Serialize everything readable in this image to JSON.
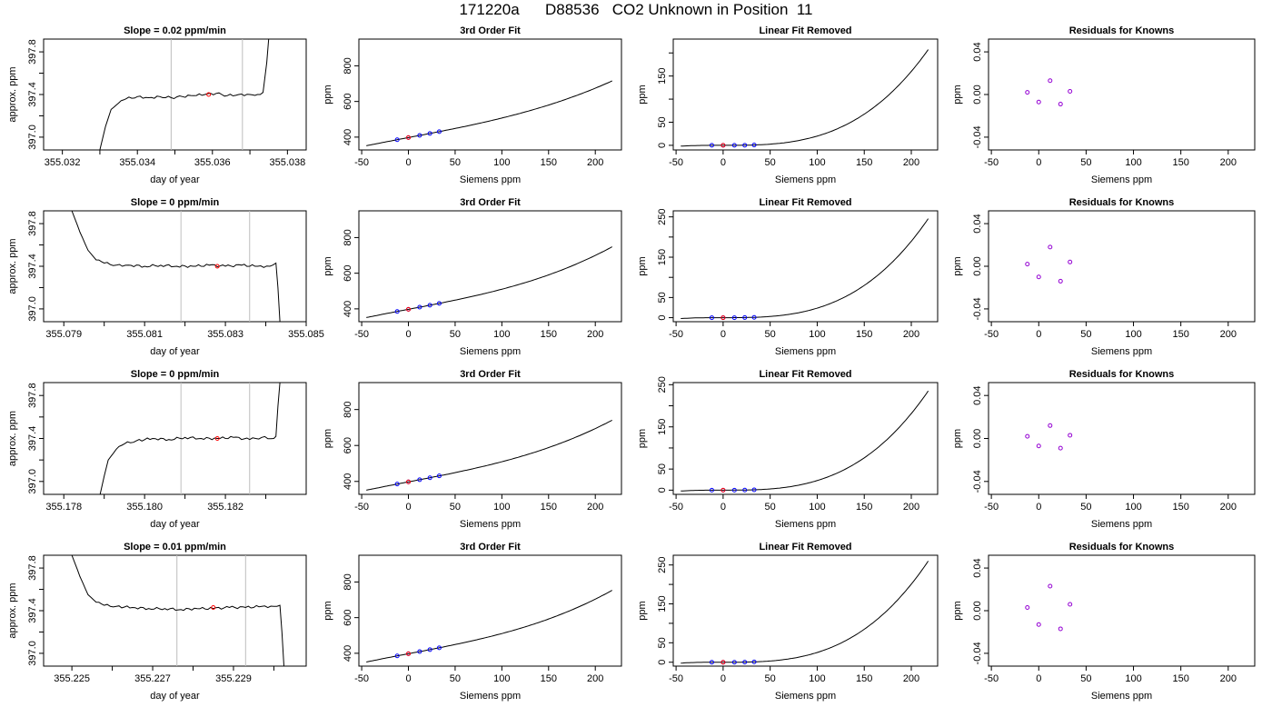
{
  "figure_title": "171220a      D88536   CO2 Unknown in Position  11",
  "colors": {
    "curve": "#000000",
    "marker_known": "#0000ff",
    "marker_unknown": "#ff0000",
    "residual_marker": "#9400d3",
    "window_line": "#bebebe"
  },
  "chart_data": [
    {
      "row": 1,
      "panel": "trace",
      "type": "line",
      "title": "Slope =  0.02  ppm/min",
      "xlabel": "day of year",
      "ylabel": "approx. ppm",
      "xlim": [
        355.0315,
        355.0385
      ],
      "ylim": [
        396.88,
        397.92
      ],
      "xticks": [
        "355.032",
        "355.034",
        "355.036",
        "355.038"
      ],
      "xticks_minor": [
        355.033,
        355.035,
        355.037
      ],
      "yticks": [
        "397.0",
        "397.4",
        "397.8"
      ],
      "yticks_minor": [
        397.2,
        397.6
      ],
      "vlines": [
        355.0349,
        355.0368
      ],
      "x": [
        355.033,
        355.03315,
        355.0333,
        355.0335,
        355.0337,
        355.034,
        355.0343,
        355.0346,
        355.0349,
        355.0352,
        355.0355,
        355.0358,
        355.0361,
        355.0364,
        355.0367,
        355.037,
        355.0372,
        355.03735,
        355.03745,
        355.0375
      ],
      "y": [
        396.88,
        397.1,
        397.26,
        397.32,
        397.36,
        397.38,
        397.37,
        397.38,
        397.37,
        397.38,
        397.39,
        397.4,
        397.41,
        397.39,
        397.4,
        397.4,
        397.4,
        397.42,
        397.7,
        397.92
      ],
      "marker": {
        "x": 355.0359,
        "y": 397.4
      }
    },
    {
      "row": 1,
      "panel": "fit",
      "type": "line",
      "title": "3rd Order Fit",
      "xlabel": "Siemens ppm",
      "ylabel": "ppm",
      "xlim": [
        -53,
        228
      ],
      "ylim": [
        328,
        950
      ],
      "xticks": [
        "-50",
        "0",
        "50",
        "100",
        "150",
        "200"
      ],
      "yticks": [
        "400",
        "600",
        "800"
      ],
      "curve": {
        "x_from": -45,
        "x_to": 218,
        "slope": 1.0,
        "k": 9.64e-06,
        "y0": 397.4
      },
      "points": [
        {
          "x": -12,
          "y": 385.4
        },
        {
          "x": 0,
          "y": 397.4
        },
        {
          "x": 12,
          "y": 409.4
        },
        {
          "x": 23,
          "y": 420.5
        },
        {
          "x": 33,
          "y": 430.7
        }
      ],
      "unknown": {
        "x": 0,
        "y": 397.4
      }
    },
    {
      "row": 1,
      "panel": "linear_removed",
      "type": "line",
      "title": "Linear Fit Removed",
      "xlabel": "Siemens ppm",
      "ylabel": "ppm",
      "xlim": [
        -53,
        228
      ],
      "ylim": [
        -10,
        230
      ],
      "xticks": [
        "-50",
        "0",
        "50",
        "100",
        "150",
        "200"
      ],
      "yticks": [
        "0",
        "50",
        "150"
      ],
      "yticks_minor": [
        100,
        200
      ],
      "curve": {
        "x_from": -45,
        "x_to": 218,
        "k": 2e-05
      },
      "points": [
        {
          "x": -12,
          "y": 0
        },
        {
          "x": 0,
          "y": 0
        },
        {
          "x": 12,
          "y": 0
        },
        {
          "x": 23,
          "y": 0.2
        },
        {
          "x": 33,
          "y": 0.7
        }
      ],
      "unknown": {
        "x": 0,
        "y": 0
      }
    },
    {
      "row": 1,
      "panel": "residuals",
      "type": "scatter",
      "title": "Residuals for Knowns",
      "xlabel": "Siemens ppm",
      "ylabel": "ppm",
      "xlim": [
        -53,
        228
      ],
      "ylim": [
        -0.052,
        0.052
      ],
      "xticks": [
        "-50",
        "0",
        "50",
        "100",
        "150",
        "200"
      ],
      "yticks": [
        "-0.04",
        "0.00",
        "0.04"
      ],
      "points": [
        {
          "x": -12,
          "y": 0.002
        },
        {
          "x": 0,
          "y": -0.007
        },
        {
          "x": 12,
          "y": 0.013
        },
        {
          "x": 23,
          "y": -0.009
        },
        {
          "x": 33,
          "y": 0.003
        }
      ]
    },
    {
      "row": 2,
      "panel": "trace",
      "type": "line",
      "title": "Slope =  0  ppm/min",
      "xlabel": "day of year",
      "ylabel": "approx. ppm",
      "xlim": [
        355.0785,
        355.085
      ],
      "ylim": [
        396.88,
        397.92
      ],
      "xticks": [
        "355.079",
        "355.081",
        "355.083",
        "355.085"
      ],
      "xticks_minor": [
        355.08,
        355.082,
        355.084
      ],
      "yticks": [
        "397.0",
        "397.4",
        "397.8"
      ],
      "yticks_minor": [
        397.2,
        397.6
      ],
      "vlines": [
        355.0819,
        355.0836
      ],
      "x": [
        355.0792,
        355.0794,
        355.0796,
        355.0798,
        355.08,
        355.0803,
        355.0806,
        355.081,
        355.0814,
        355.0818,
        355.0822,
        355.0826,
        355.083,
        355.0834,
        355.0838,
        355.0841,
        355.08425,
        355.0843,
        355.08435
      ],
      "y": [
        397.92,
        397.72,
        397.55,
        397.46,
        397.43,
        397.41,
        397.41,
        397.4,
        397.41,
        397.4,
        397.4,
        397.41,
        397.4,
        397.41,
        397.4,
        397.4,
        397.43,
        397.2,
        396.88
      ],
      "marker": {
        "x": 355.0828,
        "y": 397.4
      }
    },
    {
      "row": 2,
      "panel": "fit",
      "type": "line",
      "title": "3rd Order Fit",
      "xlabel": "Siemens ppm",
      "ylabel": "ppm",
      "xlim": [
        -53,
        228
      ],
      "ylim": [
        328,
        950
      ],
      "xticks": [
        "-50",
        "0",
        "50",
        "100",
        "150",
        "200"
      ],
      "yticks": [
        "400",
        "600",
        "800"
      ],
      "curve": {
        "x_from": -45,
        "x_to": 218,
        "slope": 1.0,
        "k": 1.28e-05,
        "y0": 397.4
      },
      "points": [
        {
          "x": -12,
          "y": 385.4
        },
        {
          "x": 0,
          "y": 397.4
        },
        {
          "x": 12,
          "y": 409.4
        },
        {
          "x": 23,
          "y": 420.5
        },
        {
          "x": 33,
          "y": 430.8
        }
      ],
      "unknown": {
        "x": 0,
        "y": 397.4
      }
    },
    {
      "row": 2,
      "panel": "linear_removed",
      "type": "line",
      "title": "Linear Fit Removed",
      "xlabel": "Siemens ppm",
      "ylabel": "ppm",
      "xlim": [
        -53,
        228
      ],
      "ylim": [
        -10,
        265
      ],
      "xticks": [
        "-50",
        "0",
        "50",
        "100",
        "150",
        "200"
      ],
      "yticks": [
        "0",
        "50",
        "150",
        "250"
      ],
      "yticks_minor": [
        100,
        200
      ],
      "curve": {
        "x_from": -45,
        "x_to": 218,
        "k": 2.37e-05
      },
      "points": [
        {
          "x": -12,
          "y": 0
        },
        {
          "x": 0,
          "y": 0
        },
        {
          "x": 12,
          "y": 0
        },
        {
          "x": 23,
          "y": 0.3
        },
        {
          "x": 33,
          "y": 0.8
        }
      ],
      "unknown": {
        "x": 0,
        "y": 0
      }
    },
    {
      "row": 2,
      "panel": "residuals",
      "type": "scatter",
      "title": "Residuals for Knowns",
      "xlabel": "Siemens ppm",
      "ylabel": "ppm",
      "xlim": [
        -53,
        228
      ],
      "ylim": [
        -0.052,
        0.052
      ],
      "xticks": [
        "-50",
        "0",
        "50",
        "100",
        "150",
        "200"
      ],
      "yticks": [
        "-0.04",
        "0.00",
        "0.04"
      ],
      "points": [
        {
          "x": -12,
          "y": 0.002
        },
        {
          "x": 0,
          "y": -0.01
        },
        {
          "x": 12,
          "y": 0.018
        },
        {
          "x": 23,
          "y": -0.014
        },
        {
          "x": 33,
          "y": 0.004
        }
      ]
    },
    {
      "row": 3,
      "panel": "trace",
      "type": "line",
      "title": "Slope =  0  ppm/min",
      "xlabel": "day of year",
      "ylabel": "approx. ppm",
      "xlim": [
        355.1775,
        355.184
      ],
      "ylim": [
        396.88,
        397.92
      ],
      "xticks": [
        "355.178",
        "355.180",
        "355.182"
      ],
      "xticks_minor": [
        355.179,
        355.181,
        355.183
      ],
      "yticks": [
        "397.0",
        "397.4",
        "397.8"
      ],
      "yticks_minor": [
        397.2,
        397.6
      ],
      "vlines": [
        355.1809,
        355.1826
      ],
      "x": [
        355.1789,
        355.179,
        355.1791,
        355.1793,
        355.1795,
        355.1798,
        355.1802,
        355.1806,
        355.181,
        355.1814,
        355.1818,
        355.1822,
        355.1826,
        355.1829,
        355.1832,
        355.18325,
        355.1833,
        355.18335
      ],
      "y": [
        396.88,
        397.05,
        397.2,
        397.3,
        397.35,
        397.38,
        397.4,
        397.39,
        397.41,
        397.4,
        397.4,
        397.41,
        397.39,
        397.41,
        397.4,
        397.42,
        397.7,
        397.92
      ],
      "marker": {
        "x": 355.1818,
        "y": 397.4
      }
    },
    {
      "row": 3,
      "panel": "fit",
      "type": "line",
      "title": "3rd Order Fit",
      "xlabel": "Siemens ppm",
      "ylabel": "ppm",
      "xlim": [
        -53,
        228
      ],
      "ylim": [
        328,
        950
      ],
      "xticks": [
        "-50",
        "0",
        "50",
        "100",
        "150",
        "200"
      ],
      "yticks": [
        "400",
        "600",
        "800"
      ],
      "curve": {
        "x_from": -45,
        "x_to": 218,
        "slope": 1.0,
        "k": 1.21e-05,
        "y0": 397.4
      },
      "points": [
        {
          "x": -12,
          "y": 385.4
        },
        {
          "x": 0,
          "y": 397.4
        },
        {
          "x": 12,
          "y": 409.4
        },
        {
          "x": 23,
          "y": 420.5
        },
        {
          "x": 33,
          "y": 430.8
        }
      ],
      "unknown": {
        "x": 0,
        "y": 397.4
      }
    },
    {
      "row": 3,
      "panel": "linear_removed",
      "type": "line",
      "title": "Linear Fit Removed",
      "xlabel": "Siemens ppm",
      "ylabel": "ppm",
      "xlim": [
        -53,
        228
      ],
      "ylim": [
        -10,
        255
      ],
      "xticks": [
        "-50",
        "0",
        "50",
        "100",
        "150",
        "200"
      ],
      "yticks": [
        "0",
        "50",
        "150",
        "250"
      ],
      "yticks_minor": [
        100,
        200
      ],
      "curve": {
        "x_from": -45,
        "x_to": 218,
        "k": 2.27e-05
      },
      "points": [
        {
          "x": -12,
          "y": 0
        },
        {
          "x": 0,
          "y": 0
        },
        {
          "x": 12,
          "y": 0
        },
        {
          "x": 23,
          "y": 0.3
        },
        {
          "x": 33,
          "y": 0.8
        }
      ],
      "unknown": {
        "x": 0,
        "y": 0
      }
    },
    {
      "row": 3,
      "panel": "residuals",
      "type": "scatter",
      "title": "Residuals for Knowns",
      "xlabel": "Siemens ppm",
      "ylabel": "ppm",
      "xlim": [
        -53,
        228
      ],
      "ylim": [
        -0.052,
        0.052
      ],
      "xticks": [
        "-50",
        "0",
        "50",
        "100",
        "150",
        "200"
      ],
      "yticks": [
        "-0.04",
        "0.00",
        "0.04"
      ],
      "points": [
        {
          "x": -12,
          "y": 0.002
        },
        {
          "x": 0,
          "y": -0.007
        },
        {
          "x": 12,
          "y": 0.012
        },
        {
          "x": 23,
          "y": -0.009
        },
        {
          "x": 33,
          "y": 0.003
        }
      ]
    },
    {
      "row": 4,
      "panel": "trace",
      "type": "line",
      "title": "Slope =  0.01  ppm/min",
      "xlabel": "day of year",
      "ylabel": "approx. ppm",
      "xlim": [
        355.2243,
        355.2308
      ],
      "ylim": [
        396.88,
        397.92
      ],
      "xticks": [
        "355.225",
        "355.227",
        "355.229"
      ],
      "xticks_minor": [
        355.226,
        355.228,
        355.23
      ],
      "yticks": [
        "397.0",
        "397.4",
        "397.8"
      ],
      "yticks_minor": [
        397.2,
        397.6
      ],
      "vlines": [
        355.2276,
        355.2293
      ],
      "x": [
        355.225,
        355.2252,
        355.2254,
        355.2256,
        355.2258,
        355.2261,
        355.2265,
        355.2269,
        355.2273,
        355.2277,
        355.2281,
        355.2285,
        355.2289,
        355.2293,
        355.2297,
        355.23,
        355.23015,
        355.2302,
        355.23025
      ],
      "y": [
        397.92,
        397.72,
        397.55,
        397.48,
        397.45,
        397.44,
        397.43,
        397.42,
        397.42,
        397.41,
        397.42,
        397.42,
        397.43,
        397.43,
        397.44,
        397.44,
        397.45,
        397.2,
        396.88
      ],
      "marker": {
        "x": 355.2285,
        "y": 397.43
      }
    },
    {
      "row": 4,
      "panel": "fit",
      "type": "line",
      "title": "3rd Order Fit",
      "xlabel": "Siemens ppm",
      "ylabel": "ppm",
      "xlim": [
        -53,
        228
      ],
      "ylim": [
        328,
        950
      ],
      "xticks": [
        "-50",
        "0",
        "50",
        "100",
        "150",
        "200"
      ],
      "yticks": [
        "400",
        "600",
        "800"
      ],
      "curve": {
        "x_from": -45,
        "x_to": 218,
        "slope": 1.0,
        "k": 1.33e-05,
        "y0": 397.4
      },
      "points": [
        {
          "x": -12,
          "y": 385.4
        },
        {
          "x": 0,
          "y": 397.4
        },
        {
          "x": 12,
          "y": 409.4
        },
        {
          "x": 23,
          "y": 420.5
        },
        {
          "x": 33,
          "y": 430.8
        }
      ],
      "unknown": {
        "x": 0,
        "y": 397.4
      }
    },
    {
      "row": 4,
      "panel": "linear_removed",
      "type": "line",
      "title": "Linear Fit Removed",
      "xlabel": "Siemens ppm",
      "ylabel": "ppm",
      "xlim": [
        -53,
        228
      ],
      "ylim": [
        -10,
        275
      ],
      "xticks": [
        "-50",
        "0",
        "50",
        "100",
        "150",
        "200"
      ],
      "yticks": [
        "0",
        "50",
        "150",
        "250"
      ],
      "yticks_minor": [
        100,
        200
      ],
      "curve": {
        "x_from": -45,
        "x_to": 218,
        "k": 2.51e-05
      },
      "points": [
        {
          "x": -12,
          "y": 0
        },
        {
          "x": 0,
          "y": 0
        },
        {
          "x": 12,
          "y": 0
        },
        {
          "x": 23,
          "y": 0.3
        },
        {
          "x": 33,
          "y": 0.9
        }
      ],
      "unknown": {
        "x": 0,
        "y": 0
      }
    },
    {
      "row": 4,
      "panel": "residuals",
      "type": "scatter",
      "title": "Residuals for Knowns",
      "xlabel": "Siemens ppm",
      "ylabel": "ppm",
      "xlim": [
        -53,
        228
      ],
      "ylim": [
        -0.052,
        0.052
      ],
      "xticks": [
        "-50",
        "0",
        "50",
        "100",
        "150",
        "200"
      ],
      "yticks": [
        "-0.04",
        "0.00",
        "0.04"
      ],
      "points": [
        {
          "x": -12,
          "y": 0.003
        },
        {
          "x": 0,
          "y": -0.013
        },
        {
          "x": 12,
          "y": 0.023
        },
        {
          "x": 23,
          "y": -0.017
        },
        {
          "x": 33,
          "y": 0.006
        }
      ]
    }
  ]
}
